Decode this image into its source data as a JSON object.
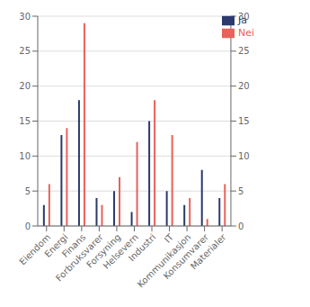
{
  "chart_data": {
    "type": "bar",
    "categories": [
      "Eiendom",
      "Energi",
      "Finans",
      "Forbruksvarer",
      "Forsyning",
      "Helsevern",
      "Industri",
      "IT",
      "Kommunikasjon",
      "Konsumvarer",
      "Materialer"
    ],
    "series": [
      {
        "name": "Ja",
        "color": "#2b3a6b",
        "values": [
          3,
          13,
          18,
          4,
          5,
          2,
          15,
          5,
          3,
          8,
          4
        ]
      },
      {
        "name": "Nei",
        "color": "#e8615b",
        "values": [
          6,
          14,
          29,
          3,
          7,
          12,
          18,
          13,
          4,
          1,
          6
        ]
      }
    ],
    "ylim": [
      0,
      30
    ],
    "yticks": [
      0,
      5,
      10,
      15,
      20,
      25,
      30
    ],
    "y2lim": [
      0,
      30
    ],
    "y2ticks": [
      0,
      5,
      10,
      15,
      20,
      25,
      30
    ],
    "grid": true,
    "legend": "upper right"
  }
}
